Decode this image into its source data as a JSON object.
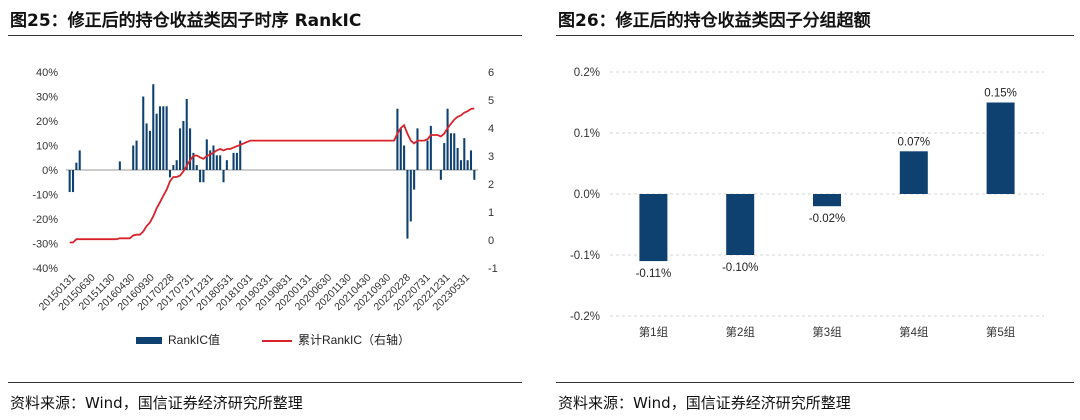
{
  "left": {
    "title": "图25：修正后的持仓收益类因子时序 RankIC",
    "source": "资料来源：Wind，国信证券经济研究所整理",
    "chart_data": {
      "type": "bar",
      "title": "",
      "y_left": {
        "ticks": [
          "40%",
          "30%",
          "20%",
          "10%",
          "0%",
          "-10%",
          "-20%",
          "-30%",
          "-40%"
        ],
        "ylim": [
          -0.4,
          0.4
        ]
      },
      "y_right": {
        "ticks": [
          "6",
          "5",
          "4",
          "3",
          "2",
          "1",
          "0",
          "-1"
        ],
        "ylim": [
          -1,
          6
        ]
      },
      "x_tick_labels": [
        "20150131",
        "20150630",
        "20151130",
        "20160430",
        "20160930",
        "20170228",
        "20170731",
        "20171231",
        "20180531",
        "20181031",
        "20190331",
        "20190831",
        "20200131",
        "20200630",
        "20201130",
        "20210430",
        "20210930",
        "20220228",
        "20220731",
        "20221231",
        "20230531"
      ],
      "legend": [
        "RankIC值",
        "累计RankIC（右轴）"
      ],
      "legend_position": "bottom",
      "series": [
        {
          "name": "RankIC值",
          "axis": "left",
          "color": "#0f4170",
          "values": [
            -0.09,
            -0.09,
            0.03,
            0.08,
            0,
            0,
            0,
            0,
            0,
            0,
            0,
            0,
            0,
            0,
            0,
            0.035,
            0,
            0,
            0,
            0.1,
            0.12,
            0,
            0.3,
            0.19,
            0.16,
            0.35,
            0.23,
            0.26,
            0.26,
            0.26,
            -0.03,
            0.02,
            0.04,
            0.17,
            0.2,
            0.29,
            0.17,
            0.07,
            0.02,
            -0.05,
            -0.05,
            0.125,
            0.08,
            0.1,
            0.06,
            0.06,
            -0.05,
            0.04,
            0,
            0.07,
            0.07,
            0.12,
            0,
            0,
            0,
            0,
            0,
            0,
            0,
            0,
            0,
            0,
            0,
            0,
            0,
            0,
            0,
            0,
            0,
            0,
            0,
            0,
            0,
            0,
            0,
            0,
            0,
            0,
            0,
            0,
            0,
            0,
            0,
            0,
            0,
            0,
            0,
            0,
            0,
            0,
            0,
            0,
            0,
            0,
            0,
            0,
            0,
            0,
            0.25,
            0.17,
            0.1,
            -0.28,
            -0.21,
            -0.08,
            0.17,
            0,
            0,
            0.12,
            0.18,
            0,
            0,
            -0.04,
            0.11,
            0.25,
            0.15,
            0.15,
            0.09,
            0.04,
            0.13,
            0.04,
            0.08,
            -0.04
          ]
        },
        {
          "name": "累计RankIC（右轴）",
          "axis": "right",
          "color": "#d9232c",
          "type": "line",
          "values": [
            -0.09,
            -0.09,
            0.03,
            0.03,
            0.03,
            0.03,
            0.03,
            0.03,
            0.03,
            0.03,
            0.03,
            0.03,
            0.03,
            0.03,
            0.03,
            0.06,
            0.06,
            0.06,
            0.06,
            0.16,
            0.19,
            0.19,
            0.3,
            0.5,
            0.62,
            0.85,
            1.13,
            1.35,
            1.58,
            1.8,
            2.1,
            2.25,
            2.25,
            2.3,
            2.45,
            2.65,
            2.85,
            3.0,
            3.02,
            2.95,
            2.9,
            3.0,
            3.05,
            3.12,
            3.2,
            3.25,
            3.2,
            3.25,
            3.25,
            3.3,
            3.35,
            3.4,
            3.45,
            3.5,
            3.55,
            3.55,
            3.55,
            3.55,
            3.55,
            3.55,
            3.55,
            3.55,
            3.55,
            3.55,
            3.55,
            3.55,
            3.55,
            3.55,
            3.55,
            3.55,
            3.55,
            3.55,
            3.55,
            3.55,
            3.55,
            3.55,
            3.55,
            3.55,
            3.55,
            3.55,
            3.55,
            3.55,
            3.55,
            3.55,
            3.55,
            3.55,
            3.55,
            3.55,
            3.55,
            3.55,
            3.55,
            3.55,
            3.55,
            3.55,
            3.55,
            3.55,
            3.55,
            3.55,
            3.8,
            4.0,
            4.1,
            3.8,
            3.55,
            3.45,
            3.55,
            3.55,
            3.55,
            3.6,
            3.75,
            3.75,
            3.75,
            3.7,
            3.8,
            4.0,
            4.15,
            4.3,
            4.4,
            4.45,
            4.55,
            4.6,
            4.68,
            4.7
          ]
        }
      ]
    }
  },
  "right": {
    "title": "图26：修正后的持仓收益类因子分组超额",
    "source": "资料来源：Wind，国信证券经济研究所整理",
    "chart_data": {
      "type": "bar",
      "title": "",
      "categories": [
        "第1组",
        "第2组",
        "第3组",
        "第4组",
        "第5组"
      ],
      "values": [
        -0.11,
        -0.1,
        -0.02,
        0.07,
        0.15
      ],
      "value_labels": [
        "-0.11%",
        "-0.10%",
        "-0.02%",
        "0.07%",
        "0.15%"
      ],
      "y_ticks": [
        "0.2%",
        "0.1%",
        "0.0%",
        "-0.1%",
        "-0.2%"
      ],
      "ylim": [
        -0.2,
        0.2
      ],
      "grid": true,
      "bar_color": "#0f4170"
    }
  }
}
